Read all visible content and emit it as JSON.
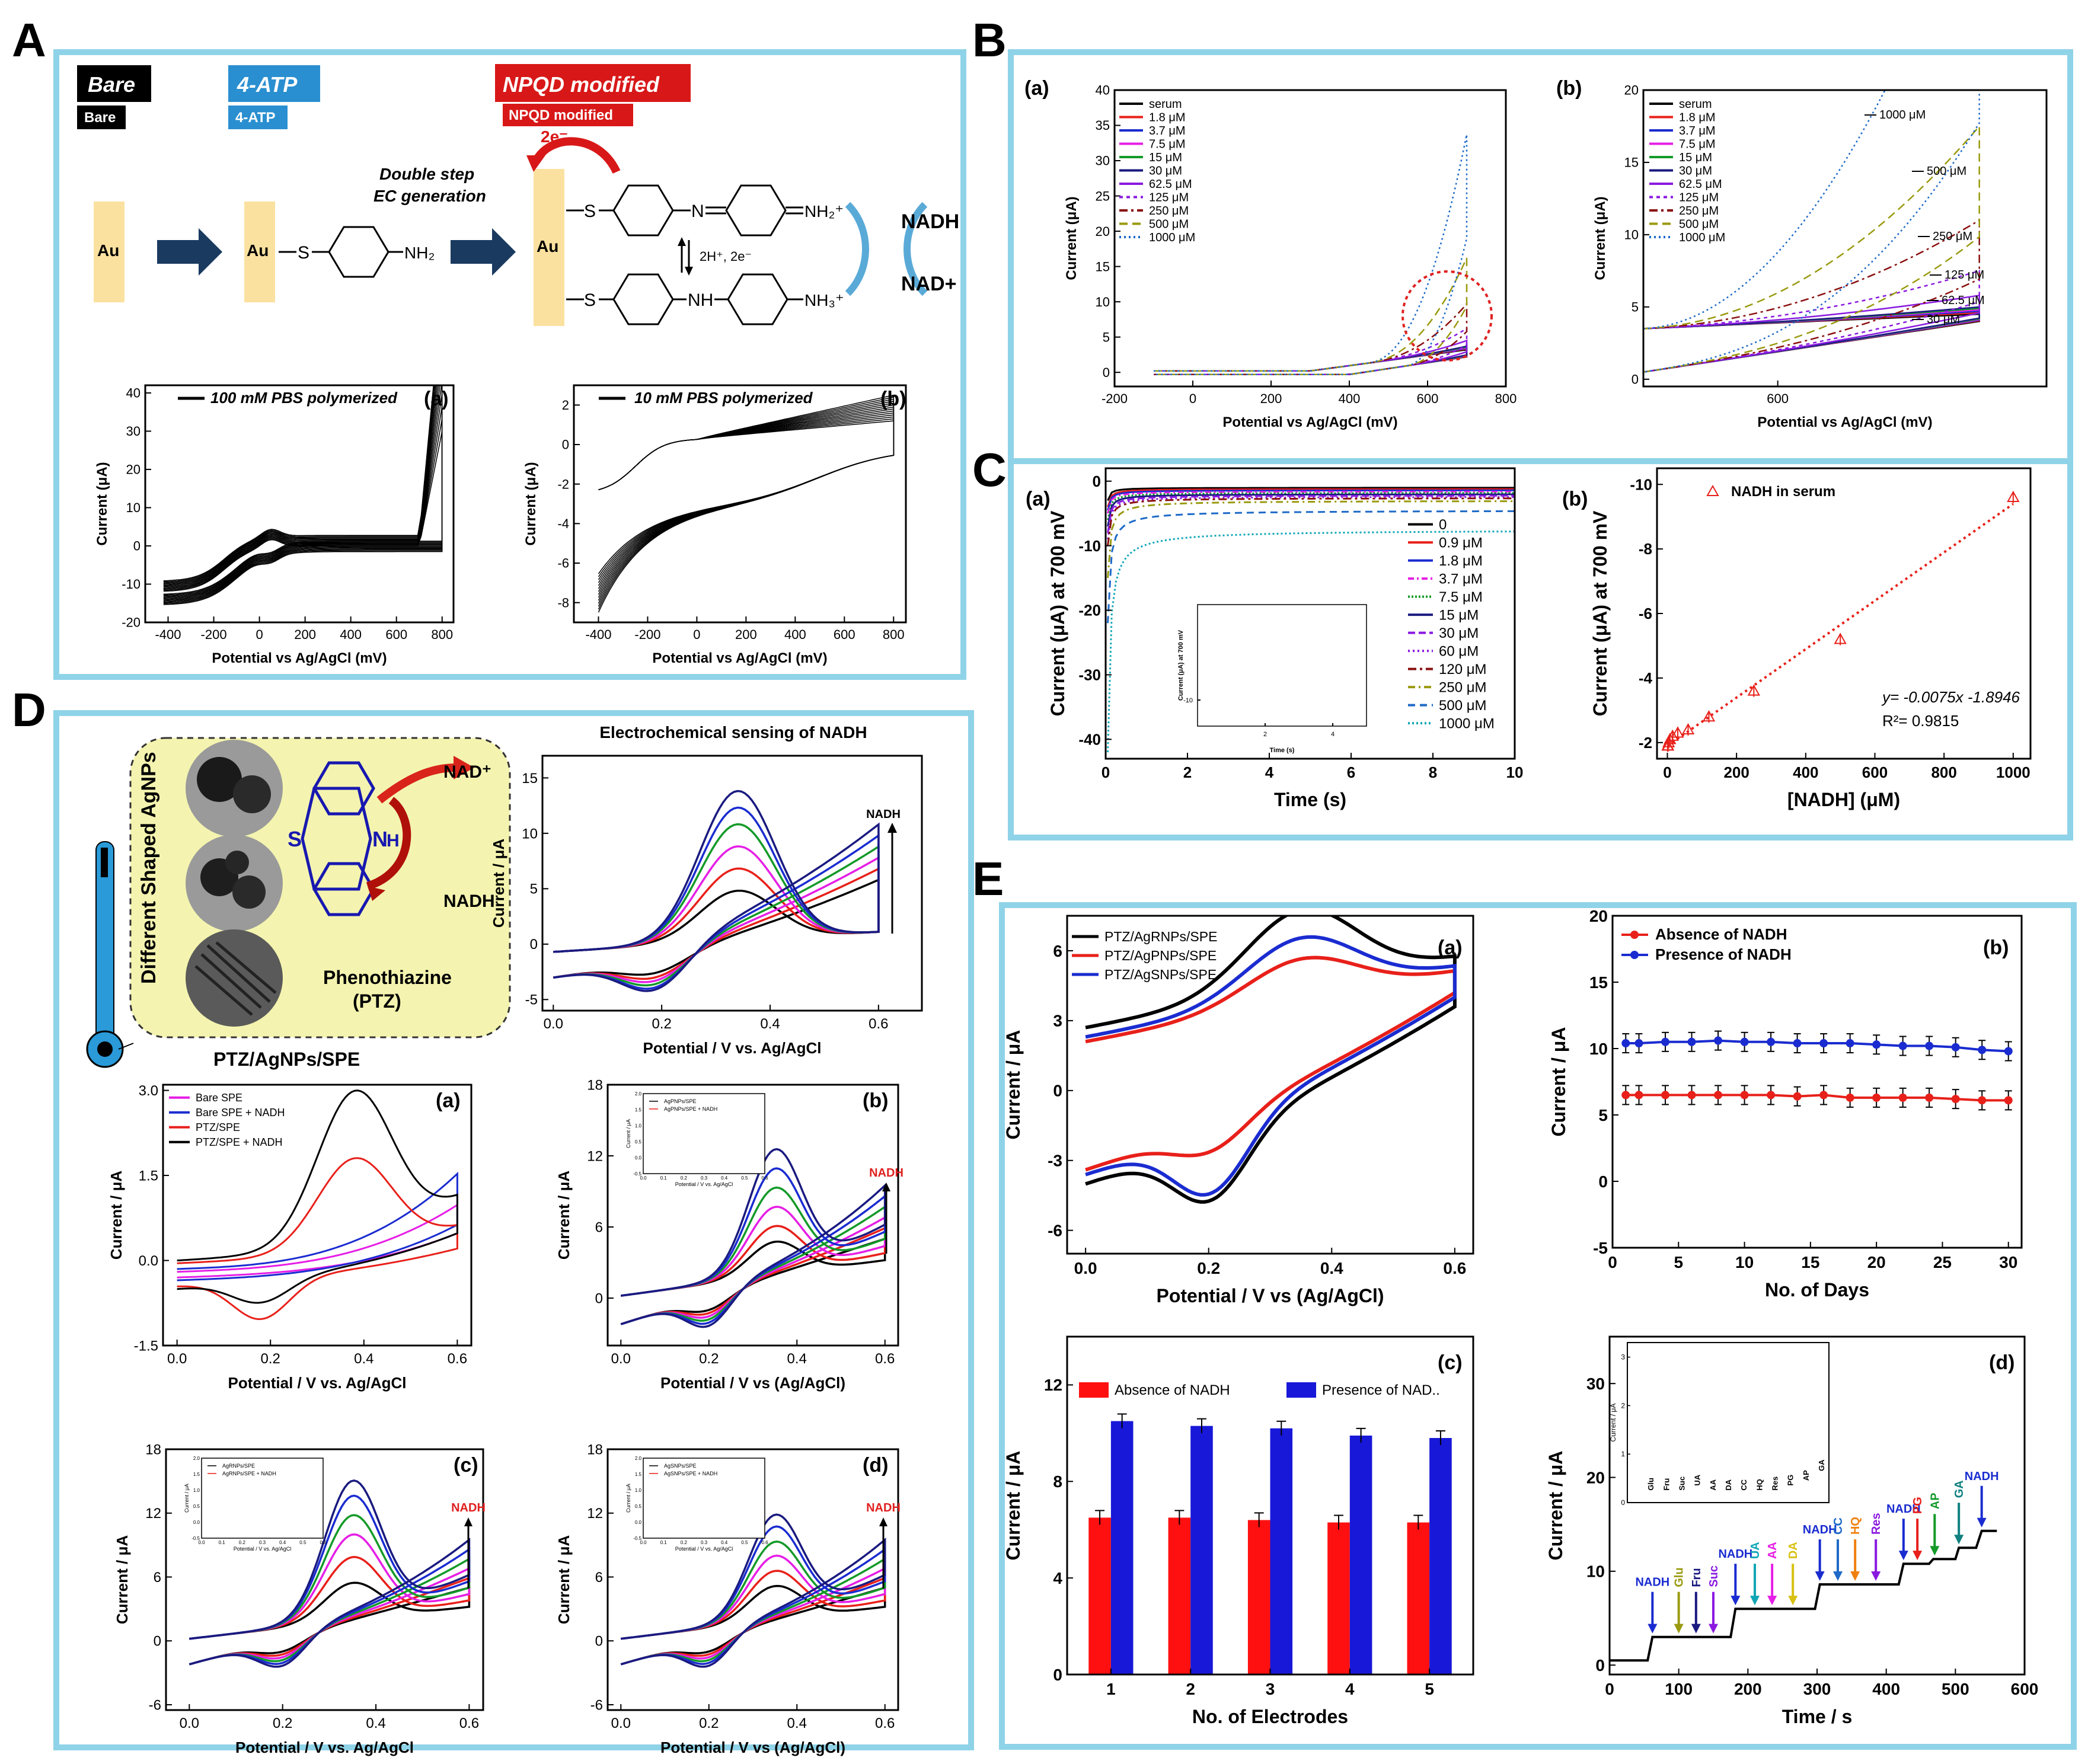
{
  "colors": {
    "frame": "#8fd3e8",
    "black": "#000000",
    "red": "#e8201a",
    "blue": "#1a2cd0",
    "magenta": "#e61ee6",
    "green": "#139a28",
    "navy": "#1a1a80",
    "purple": "#8a1ae0",
    "darkred": "#8a1010",
    "olive": "#9a9a10",
    "cyan": "#10a6b6",
    "steel": "#1e6ac8",
    "tbg": "#f4f4b0"
  },
  "panelA": {
    "letter": "A",
    "badges": {
      "bare": "Bare",
      "bare_small": "Bare",
      "atp": "4-ATP",
      "atp_small": "4-ATP",
      "npqd": "NPQD modified",
      "npqd_small": "NPQD modified"
    },
    "scheme": {
      "au": "Au",
      "au_s": "Au",
      "s_atom": "S",
      "nh2": "NH₂",
      "double_step": "Double step",
      "ec_gen": "EC generation",
      "two_e": "2e⁻",
      "s1": "S",
      "n_eq": "N",
      "nh2plus": "NH₂⁺",
      "equil": "2H⁺, 2e⁻",
      "s2": "S",
      "nh": "NH",
      "nh3plus": "NH₃⁺",
      "au_big": "Au",
      "nadh": "NADH",
      "nadplus": "NAD+"
    },
    "plot_a": {
      "legend": "100 mM PBS polymerized",
      "sub": "(a)",
      "ylabel": "Current (μA)",
      "xlabel": "Potential vs Ag/AgCl (mV)",
      "xticks": [
        "-400",
        "-200",
        "0",
        "200",
        "400",
        "600",
        "800"
      ],
      "yticks": [
        "40",
        "30",
        "20",
        "10",
        "0",
        "-10",
        "-20"
      ]
    },
    "plot_b": {
      "legend": "10 mM PBS polymerized",
      "sub": "(b)",
      "ylabel": "Current (μA)",
      "xlabel": "Potential vs Ag/AgCl (mV)",
      "xticks": [
        "-400",
        "-200",
        "0",
        "200",
        "400",
        "600",
        "800"
      ],
      "yticks": [
        "2",
        "0",
        "-2",
        "-4",
        "-6",
        "-8"
      ]
    }
  },
  "panelB": {
    "letter": "B",
    "plot_a": {
      "sub": "(a)",
      "ylabel": "Current (μA)",
      "xlabel": "Potential vs Ag/AgCl (mV)",
      "xticks": [
        "-200",
        "0",
        "200",
        "400",
        "600",
        "800"
      ],
      "yticks": [
        "40",
        "35",
        "30",
        "25",
        "20",
        "15",
        "10",
        "5",
        "0"
      ],
      "legend": [
        "serum",
        "1.8 μM",
        "3.7 μM",
        "7.5 μM",
        "15 μM",
        "30 μM",
        "62.5 μM",
        "125 μM",
        "250 μM",
        "500 μM",
        "1000 μM"
      ]
    },
    "plot_b": {
      "sub": "(b)",
      "ylabel": "Current (μA)",
      "xlabel": "Potential vs Ag/AgCl (mV)",
      "xticks": [
        "600"
      ],
      "yticks": [
        "20",
        "15",
        "10",
        "5",
        "0"
      ],
      "legend": [
        "serum",
        "1.8 μM",
        "3.7 μM",
        "7.5 μM",
        "15 μM",
        "30 μM",
        "62.5 μM",
        "125 μM",
        "250 μM",
        "500 μM",
        "1000 μM"
      ],
      "ann": [
        "1000 μM",
        "500 μM",
        "250 μM",
        "125 μM",
        "62.5 μM",
        "30 μM"
      ]
    }
  },
  "panelC": {
    "letter": "C",
    "plot_a": {
      "sub": "(a)",
      "ylabel": "Current (μA) at 700 mV",
      "xlabel": "Time (s)",
      "xticks": [
        "0",
        "2",
        "4",
        "6",
        "8",
        "10"
      ],
      "yticks": [
        "0",
        "-10",
        "-20",
        "-30",
        "-40"
      ],
      "legend": [
        "0",
        "0.9 μM",
        "1.8 μM",
        "3.7 μM",
        "7.5 μM",
        "15 μM",
        "30 μM",
        "60 μM",
        "120 μM",
        "250 μM",
        "500 μM",
        "1000 μM"
      ],
      "inset_ylabel": "Current (μA) at 700 mV",
      "inset_xlabel": "Time (s)",
      "inset_xticks": [
        "2",
        "4"
      ],
      "inset_yticks": [
        "-10"
      ]
    },
    "plot_b": {
      "sub": "(b)",
      "ylabel": "Current (μA) at 700 mV",
      "xlabel": "[NADH] (μM)",
      "xticks": [
        "0",
        "200",
        "400",
        "600",
        "800",
        "1000"
      ],
      "yticks": [
        "-10",
        "-8",
        "-6",
        "-4",
        "-2"
      ],
      "legend": "NADH in serum",
      "equation": "y= -0.0075x -1.8946",
      "r2": "R²= 0.9815"
    }
  },
  "panelD": {
    "letter": "D",
    "graphic": {
      "shapes": "Different Shaped AgNPs",
      "ptz": "Phenothiazine",
      "ptz2": "(PTZ)",
      "nadplus": "NAD⁺",
      "nadh": "NADH",
      "s": "S",
      "nh": "N",
      "h": "H",
      "electrode": "PTZ/AgNPs/SPE"
    },
    "main": {
      "title": "Electrochemical sensing of NADH",
      "ylabel": "Current / μA",
      "xlabel": "Potential / V vs. Ag/AgCl",
      "xticks": [
        "0.0",
        "0.2",
        "0.4",
        "0.6"
      ],
      "yticks": [
        "15",
        "10",
        "5",
        "0",
        "-5"
      ],
      "arrow": "NADH"
    },
    "plot_a": {
      "sub": "(a)",
      "ylabel": "Current / μA",
      "xlabel": "Potential / V vs. Ag/AgCl",
      "xticks": [
        "0.0",
        "0.2",
        "0.4",
        "0.6"
      ],
      "yticks": [
        "3.0",
        "1.5",
        "0.0",
        "-1.5"
      ],
      "legend": [
        "Bare SPE",
        "Bare SPE + NADH",
        "PTZ/SPE",
        "PTZ/SPE + NADH"
      ]
    },
    "plot_b": {
      "sub": "(b)",
      "ylabel": "Current / μA",
      "xlabel": "Potential / V vs (Ag/AgCl)",
      "xticks": [
        "0.0",
        "0.2",
        "0.4",
        "0.6"
      ],
      "yticks": [
        "18",
        "12",
        "6",
        "0"
      ],
      "arrow": "NADH",
      "inset_legend": [
        "AgPNPs/SPE",
        "AgPNPs/SPE + NADH"
      ],
      "inset_xlabel": "Potential / V vs. Ag/AgCl",
      "inset_ylabel": "Current / μA",
      "inset_xticks": [
        "0.0",
        "0.1",
        "0.2",
        "0.3",
        "0.4",
        "0.5",
        "0.6"
      ],
      "inset_yticks": [
        "2.0",
        "1.5",
        "1.0",
        "0.5",
        "0.0",
        "-0.5"
      ]
    },
    "plot_c": {
      "sub": "(c)",
      "ylabel": "Current / μA",
      "xlabel": "Potential / V vs. Ag/AgCl",
      "xticks": [
        "0.0",
        "0.2",
        "0.4",
        "0.6"
      ],
      "yticks": [
        "18",
        "12",
        "6",
        "0",
        "-6"
      ],
      "arrow": "NADH",
      "inset_legend": [
        "AgRNPs/SPE",
        "AgRNPs/SPE + NADH"
      ],
      "inset_xlabel": "Potential / V vs. Ag/AgCl",
      "inset_ylabel": "Current / μA",
      "inset_xticks": [
        "0.0",
        "0.1",
        "0.2",
        "0.3",
        "0.4",
        "0.5",
        "0.6"
      ],
      "inset_yticks": [
        "2.0",
        "1.5",
        "1.0",
        "0.5",
        "0.0",
        "-0.5"
      ]
    },
    "plot_d": {
      "sub": "(d)",
      "ylabel": "Current / μA",
      "xlabel": "Potential / V vs (Ag/AgCl)",
      "xticks": [
        "0.0",
        "0.2",
        "0.4",
        "0.6"
      ],
      "yticks": [
        "18",
        "12",
        "6",
        "0",
        "-6"
      ],
      "arrow": "NADH",
      "inset_legend": [
        "AgSNPs/SPE",
        "AgSNPs/SPE + NADH"
      ],
      "inset_xlabel": "Potential / V vs. Ag/AgCl",
      "inset_ylabel": "Current / μA",
      "inset_xticks": [
        "0.0",
        "0.1",
        "0.2",
        "0.3",
        "0.4",
        "0.5",
        "0.6"
      ],
      "inset_yticks": [
        "2.0",
        "1.5",
        "1.0",
        "0.5",
        "0.0",
        "-0.5"
      ]
    }
  },
  "panelE": {
    "letter": "E",
    "plot_a": {
      "sub": "(a)",
      "ylabel": "Current / μA",
      "xlabel": "Potential / V vs (Ag/AgCl)",
      "xticks": [
        "0.0",
        "0.2",
        "0.4",
        "0.6"
      ],
      "yticks": [
        "6",
        "3",
        "0",
        "-3",
        "-6"
      ],
      "legend": [
        "PTZ/AgRNPs/SPE",
        "PTZ/AgPNPs/SPE",
        "PTZ/AgSNPs/SPE"
      ]
    },
    "plot_b": {
      "sub": "(b)",
      "ylabel": "Current / μA",
      "xlabel": "No. of Days",
      "xticks": [
        "0",
        "5",
        "10",
        "15",
        "20",
        "25",
        "30"
      ],
      "yticks": [
        "20",
        "15",
        "10",
        "5",
        "0",
        "-5"
      ],
      "legend": [
        "Absence of NADH",
        "Presence of NADH"
      ]
    },
    "plot_c": {
      "sub": "(c)",
      "ylabel": "Current / μA",
      "xlabel": "No. of Electrodes",
      "xticks": [
        "1",
        "2",
        "3",
        "4",
        "5"
      ],
      "yticks": [
        "12",
        "8",
        "4",
        "0"
      ],
      "legend": [
        "Absence of NADH",
        "Presence of NAD.."
      ]
    },
    "plot_d": {
      "sub": "(d)",
      "ylabel": "Current / μA",
      "xlabel": "Time / s",
      "xticks": [
        "0",
        "100",
        "200",
        "300",
        "400",
        "500",
        "600"
      ],
      "yticks": [
        "30",
        "20",
        "10",
        "0"
      ],
      "inset_ylabel": "Current / μA",
      "inset_yticks": [
        "3",
        "2",
        "1",
        "0"
      ],
      "inset_labels": [
        "NADH",
        "Glu",
        "Fru",
        "Suc",
        "UA",
        "AA",
        "DA",
        "CC",
        "HQ",
        "Res",
        "PG",
        "AP",
        "GA"
      ],
      "arrows": [
        "NADH",
        "Glu",
        "Fru",
        "Suc",
        "NADH",
        "UA",
        "AA",
        "DA",
        "NADH",
        "CC",
        "HQ",
        "Res",
        "NADH",
        "PG",
        "AP",
        "GA",
        "NADH"
      ]
    }
  },
  "chart_data": [
    {
      "id": "A-a",
      "type": "line",
      "title": "100 mM PBS polymerized",
      "xlabel": "Potential vs Ag/AgCl (mV)",
      "ylabel": "Current (μA)",
      "xlim": [
        -500,
        850
      ],
      "ylim": [
        -20,
        42
      ]
    },
    {
      "id": "A-b",
      "type": "line",
      "title": "10 mM PBS polymerized",
      "xlabel": "Potential vs Ag/AgCl (mV)",
      "ylabel": "Current (μA)",
      "xlim": [
        -500,
        850
      ],
      "ylim": [
        -9,
        3
      ]
    },
    {
      "id": "B-a",
      "type": "line",
      "xlabel": "Potential vs Ag/AgCl (mV)",
      "ylabel": "Current (μA)",
      "xlim": [
        -200,
        800
      ],
      "ylim": [
        -2,
        40
      ],
      "series": [
        {
          "name": "serum",
          "peak": 4.5
        },
        {
          "name": "1.8 μM",
          "peak": 4.6
        },
        {
          "name": "3.7 μM",
          "peak": 4.7
        },
        {
          "name": "7.5 μM",
          "peak": 4.8
        },
        {
          "name": "15 μM",
          "peak": 4.9
        },
        {
          "name": "30 μM",
          "peak": 5.0
        },
        {
          "name": "62.5 μM",
          "peak": 5.8
        },
        {
          "name": "125 μM",
          "peak": 7.5
        },
        {
          "name": "250 μM",
          "peak": 11
        },
        {
          "name": "500 μM",
          "peak": 17.5
        },
        {
          "name": "1000 μM",
          "peak": 35
        }
      ]
    },
    {
      "id": "B-b",
      "type": "line",
      "xlabel": "Potential vs Ag/AgCl (mV)",
      "ylabel": "Current (μA)",
      "xlim": [
        520,
        760
      ],
      "ylim": [
        -0.5,
        20
      ]
    },
    {
      "id": "C-a",
      "type": "line",
      "xlabel": "Time (s)",
      "ylabel": "Current (μA) at 700 mV",
      "xlim": [
        0,
        10
      ],
      "ylim": [
        -43,
        2
      ],
      "series": [
        {
          "name": "0",
          "final": -1
        },
        {
          "name": "0.9 μM",
          "final": -1.2
        },
        {
          "name": "1.8 μM",
          "final": -1.4
        },
        {
          "name": "3.7 μM",
          "final": -1.6
        },
        {
          "name": "7.5 μM",
          "final": -1.8
        },
        {
          "name": "15 μM",
          "final": -2.0
        },
        {
          "name": "30 μM",
          "final": -2.2
        },
        {
          "name": "60 μM",
          "final": -2.4
        },
        {
          "name": "120 μM",
          "final": -2.6
        },
        {
          "name": "250 μM",
          "final": -3.0
        },
        {
          "name": "500 μM",
          "final": -4.5
        },
        {
          "name": "1000 μM",
          "final": -7.5
        }
      ]
    },
    {
      "id": "C-b",
      "type": "scatter",
      "xlabel": "[NADH] (μM)",
      "ylabel": "Current (μA) at 700 mV",
      "x": [
        0.9,
        1.8,
        3.7,
        7.5,
        15,
        30,
        60,
        120,
        250,
        500,
        1000
      ],
      "y": [
        -1.9,
        -1.9,
        -2.0,
        -2.1,
        -2.2,
        -2.3,
        -2.4,
        -2.8,
        -3.6,
        -5.2,
        -9.6
      ],
      "fit": {
        "slope": -0.0075,
        "intercept": -1.8946,
        "r2": 0.9815
      },
      "xlim": [
        -30,
        1050
      ],
      "ylim": [
        -10.5,
        -1.5
      ]
    },
    {
      "id": "D-main",
      "type": "line",
      "title": "Electrochemical sensing of NADH",
      "xlabel": "Potential / V vs. Ag/AgCl",
      "ylabel": "Current / μA",
      "xlim": [
        -0.02,
        0.68
      ],
      "ylim": [
        -6,
        17
      ],
      "peaks": [
        6.5,
        8.5,
        10.5,
        12.5,
        14,
        15.5
      ]
    },
    {
      "id": "D-a",
      "type": "line",
      "xlabel": "Potential / V vs. Ag/AgCl",
      "ylabel": "Current / μA",
      "xlim": [
        -0.03,
        0.63
      ],
      "ylim": [
        -1.5,
        3.1
      ],
      "series": [
        {
          "name": "Bare SPE"
        },
        {
          "name": "Bare SPE + NADH"
        },
        {
          "name": "PTZ/SPE",
          "peak": 1.85
        },
        {
          "name": "PTZ/SPE + NADH",
          "peak": 2.95
        }
      ]
    },
    {
      "id": "D-b",
      "type": "line",
      "xlabel": "Potential / V vs (Ag/AgCl)",
      "ylabel": "Current / μA",
      "xlim": [
        -0.03,
        0.63
      ],
      "ylim": [
        -4,
        18
      ],
      "peaks": [
        5.8,
        7,
        8.5,
        10,
        11.5,
        13
      ]
    },
    {
      "id": "D-c",
      "type": "line",
      "xlabel": "Potential / V vs. Ag/AgCl",
      "ylabel": "Current / μA",
      "xlim": [
        -0.05,
        0.63
      ],
      "ylim": [
        -6.5,
        18
      ],
      "peaks": [
        6.5,
        8.8,
        10.8,
        12.5,
        14.2,
        15.5
      ]
    },
    {
      "id": "D-d",
      "type": "line",
      "xlabel": "Potential / V vs (Ag/AgCl)",
      "ylabel": "Current / μA",
      "xlim": [
        -0.03,
        0.63
      ],
      "ylim": [
        -6.5,
        18
      ],
      "peaks": [
        6.2,
        7.5,
        8.8,
        10,
        11.3,
        12.3
      ]
    },
    {
      "id": "E-a",
      "type": "line",
      "xlabel": "Potential / V vs (Ag/AgCl)",
      "ylabel": "Current / μA",
      "xlim": [
        -0.03,
        0.63
      ],
      "ylim": [
        -7,
        7.5
      ],
      "series": [
        {
          "name": "PTZ/AgRNPs/SPE",
          "peak": 6.8,
          "cathodic": -5.8
        },
        {
          "name": "PTZ/AgPNPs/SPE",
          "peak": 5.3,
          "cathodic": -4.3
        },
        {
          "name": "PTZ/AgSNPs/SPE",
          "peak": 6.0,
          "cathodic": -5.9
        }
      ]
    },
    {
      "id": "E-b",
      "type": "line",
      "xlabel": "No. of Days",
      "ylabel": "Current / μA",
      "xlim": [
        0,
        31
      ],
      "ylim": [
        -5,
        20
      ],
      "x": [
        1,
        2,
        4,
        6,
        8,
        10,
        12,
        14,
        16,
        18,
        20,
        22,
        24,
        26,
        28,
        30
      ],
      "series": [
        {
          "name": "Absence of NADH",
          "values": [
            6.5,
            6.5,
            6.5,
            6.5,
            6.5,
            6.5,
            6.5,
            6.4,
            6.5,
            6.3,
            6.3,
            6.3,
            6.3,
            6.2,
            6.1,
            6.1
          ]
        },
        {
          "name": "Presence of NADH",
          "values": [
            10.4,
            10.4,
            10.5,
            10.5,
            10.6,
            10.5,
            10.5,
            10.4,
            10.4,
            10.4,
            10.3,
            10.2,
            10.2,
            10.1,
            9.9,
            9.8
          ]
        }
      ]
    },
    {
      "id": "E-c",
      "type": "bar",
      "xlabel": "No. of Electrodes",
      "ylabel": "Current / μA",
      "categories": [
        "1",
        "2",
        "3",
        "4",
        "5"
      ],
      "ylim": [
        0,
        14
      ],
      "series": [
        {
          "name": "Absence of NADH",
          "values": [
            6.5,
            6.5,
            6.4,
            6.3,
            6.3
          ]
        },
        {
          "name": "Presence of NADH",
          "values": [
            10.5,
            10.3,
            10.2,
            9.9,
            9.8
          ]
        }
      ]
    },
    {
      "id": "E-d",
      "type": "line",
      "xlabel": "Time / s",
      "ylabel": "Current / μA",
      "xlim": [
        0,
        600
      ],
      "ylim": [
        -1,
        35
      ],
      "steps": [
        [
          0,
          0.5
        ],
        [
          55,
          0.5
        ],
        [
          62,
          3.0
        ],
        [
          175,
          3.0
        ],
        [
          182,
          6.0
        ],
        [
          297,
          6.0
        ],
        [
          304,
          8.6
        ],
        [
          418,
          8.6
        ],
        [
          425,
          10.8
        ],
        [
          462,
          10.8
        ],
        [
          468,
          11.3
        ],
        [
          500,
          11.3
        ],
        [
          505,
          12.5
        ],
        [
          530,
          12.5
        ],
        [
          538,
          14.3
        ],
        [
          560,
          14.3
        ]
      ],
      "inset": {
        "categories": [
          "NADH",
          "Glu",
          "Fru",
          "Suc",
          "UA",
          "AA",
          "DA",
          "CC",
          "HQ",
          "Res",
          "PG",
          "AP",
          "GA"
        ],
        "values": [
          3.0,
          0.2,
          0.2,
          0.2,
          0.3,
          0.2,
          0.2,
          0.2,
          0.2,
          0.2,
          0.3,
          0.4,
          0.6
        ]
      }
    }
  ]
}
